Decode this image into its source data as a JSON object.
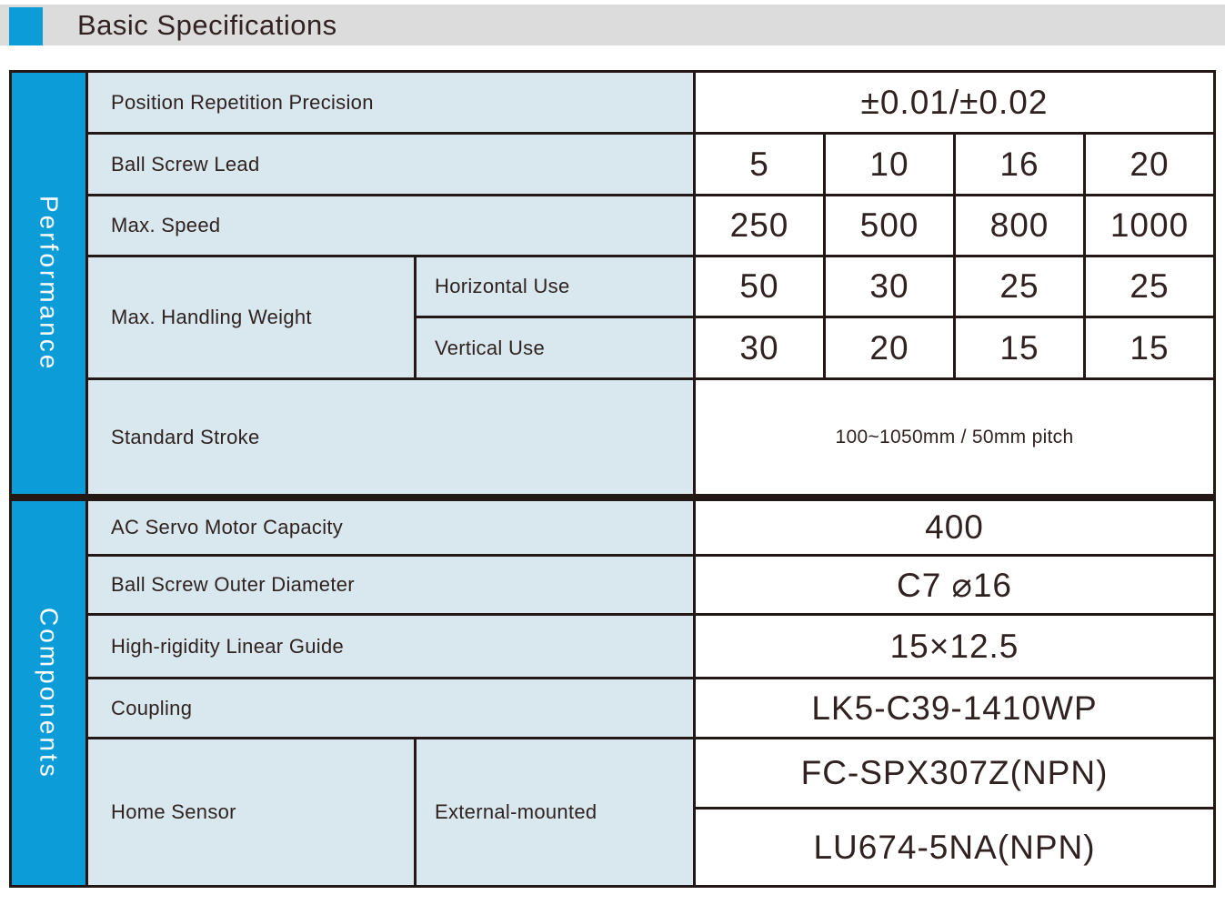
{
  "header": {
    "title": "Basic Specifications"
  },
  "performance": {
    "section_label": "Performance",
    "precision": {
      "label": "Position Repetition Precision",
      "value": "±0.01/±0.02"
    },
    "ball_screw_lead": {
      "label": "Ball Screw Lead",
      "values": [
        "5",
        "10",
        "16",
        "20"
      ]
    },
    "max_speed": {
      "label": "Max. Speed",
      "values": [
        "250",
        "500",
        "800",
        "1000"
      ]
    },
    "max_handling_weight": {
      "label": "Max. Handling Weight",
      "horizontal": {
        "label": "Horizontal Use",
        "values": [
          "50",
          "30",
          "25",
          "25"
        ]
      },
      "vertical": {
        "label": "Vertical Use",
        "values": [
          "30",
          "20",
          "15",
          "15"
        ]
      }
    },
    "standard_stroke": {
      "label": "Standard Stroke",
      "value": "100~1050mm / 50mm pitch"
    }
  },
  "components": {
    "section_label": "Components",
    "ac_servo_motor_capacity": {
      "label": "AC Servo Motor Capacity",
      "value": "400"
    },
    "ball_screw_outer_diameter": {
      "label": "Ball Screw Outer Diameter",
      "value": "C7 ⌀16"
    },
    "linear_guide": {
      "label": "High-rigidity Linear Guide",
      "value": "15×12.5"
    },
    "coupling": {
      "label": "Coupling",
      "value": "LK5-C39-1410WP"
    },
    "home_sensor": {
      "label": "Home Sensor",
      "mount_label": "External-mounted",
      "values": [
        "FC-SPX307Z(NPN)",
        "LU674-5NA(NPN)"
      ]
    }
  },
  "colors": {
    "accent_blue": "#0c9cd8",
    "label_cell_blue": "#d9e8ee",
    "border_dark": "#231815",
    "header_bar_gray": "#dcdcdc",
    "text_dark": "#2f2220"
  }
}
